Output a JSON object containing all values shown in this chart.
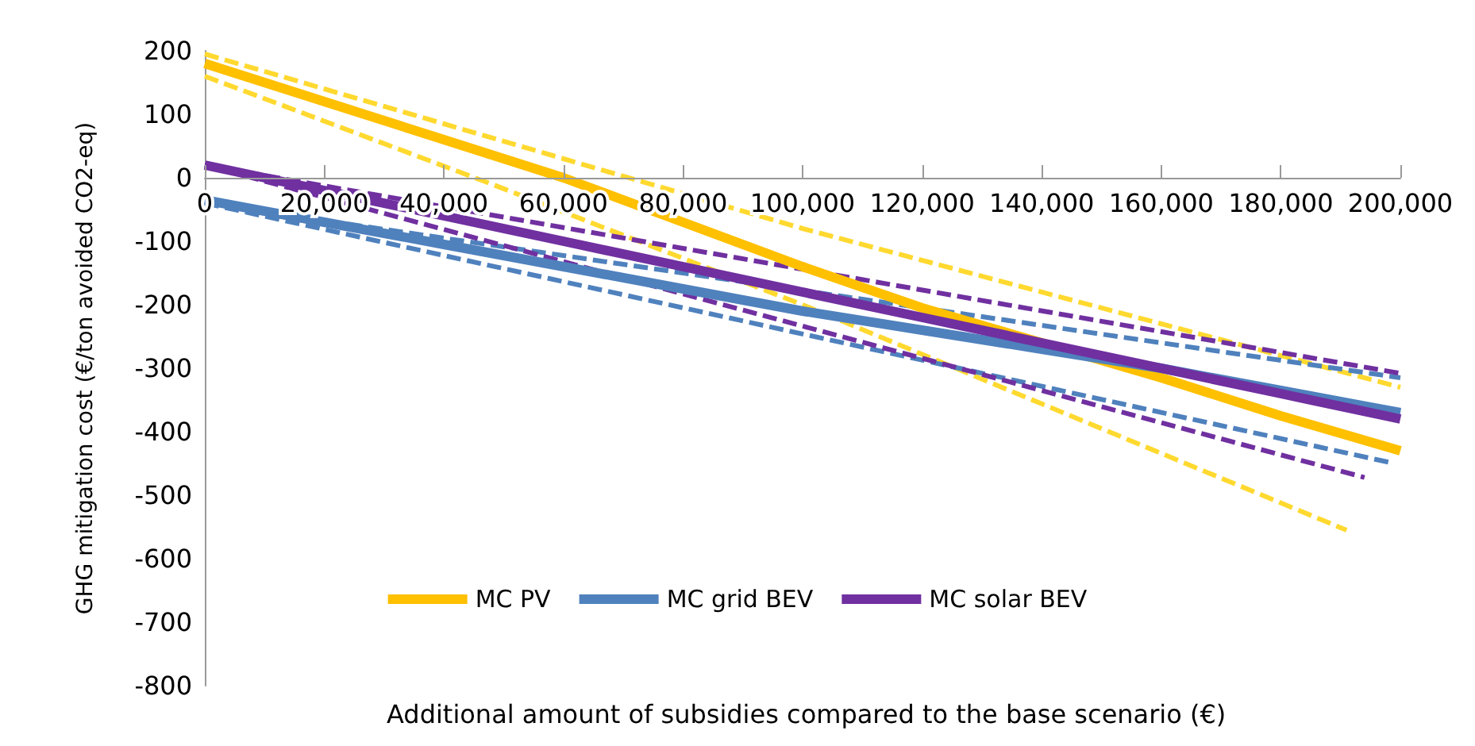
{
  "chart_data": {
    "type": "line",
    "xlabel": "Additional amount of subsidies compared to the base scenario (€)",
    "ylabel": "GHG mitigation cost (€/ton avoided CO2-eq)",
    "xlim": [
      0,
      200000
    ],
    "xticks": [
      0,
      {
        "value": 20000,
        "label": "20,000"
      },
      {
        "value": 40000,
        "label": "40,000"
      },
      {
        "value": 60000,
        "label": "60,000"
      },
      {
        "value": 80000,
        "label": "80,000"
      },
      {
        "value": 100000,
        "label": "100,000"
      },
      {
        "value": 120000,
        "label": "120,000"
      },
      {
        "value": 140000,
        "label": "140,000"
      },
      {
        "value": 160000,
        "label": "160,000"
      },
      {
        "value": 180000,
        "label": "180,000"
      },
      {
        "value": 200000,
        "label": "200,000"
      }
    ],
    "ylim": [
      -800,
      200
    ],
    "yticks": [
      -800,
      -700,
      -600,
      -500,
      -400,
      -300,
      -200,
      -100,
      0,
      100,
      200
    ],
    "grid": false,
    "legend": "bottom",
    "marker": "none",
    "series": [
      {
        "color": "#ffd92f",
        "line_style": "dashed",
        "x": [
          0,
          100000,
          200000
        ],
        "values": [
          195,
          -80,
          -330
        ]
      },
      {
        "color": "#ffd92f",
        "line_style": "dashed",
        "x": [
          0,
          48000,
          100000,
          191000
        ],
        "values": [
          160,
          -10,
          -200,
          -555
        ]
      },
      {
        "color": "#4f81bd",
        "line_style": "dashed",
        "x": [
          0,
          200000
        ],
        "values": [
          -40,
          -315
        ]
      },
      {
        "color": "#4f81bd",
        "line_style": "dashed",
        "x": [
          0,
          199000
        ],
        "values": [
          -40,
          -450
        ]
      },
      {
        "color": "#7030a0",
        "line_style": "dashed",
        "x": [
          0,
          200000
        ],
        "values": [
          20,
          -308
        ]
      },
      {
        "color": "#7030a0",
        "line_style": "dashed",
        "x": [
          0,
          194000
        ],
        "values": [
          20,
          -472
        ]
      },
      {
        "name": "MC PV",
        "color": "#ffc000",
        "line_style": "solid",
        "x": [
          0,
          20000,
          40000,
          60000,
          80000,
          100000,
          120000,
          140000,
          160000,
          180000,
          200000
        ],
        "values": [
          180,
          120,
          60,
          0,
          -70,
          -140,
          -205,
          -260,
          -315,
          -375,
          -430
        ]
      },
      {
        "name": "MC grid BEV",
        "color": "#4f81bd",
        "line_style": "solid",
        "x": [
          0,
          20000,
          40000,
          60000,
          80000,
          100000,
          120000,
          140000,
          160000,
          180000,
          200000
        ],
        "values": [
          -35,
          -70,
          -105,
          -140,
          -175,
          -210,
          -240,
          -270,
          -300,
          -335,
          -370
        ]
      },
      {
        "name": "MC solar BEV",
        "color": "#7030a0",
        "line_style": "solid",
        "x": [
          0,
          20000,
          40000,
          60000,
          80000,
          100000,
          120000,
          140000,
          160000,
          180000,
          200000
        ],
        "values": [
          20,
          -20,
          -60,
          -100,
          -140,
          -180,
          -220,
          -260,
          -300,
          -340,
          -380
        ]
      }
    ]
  }
}
